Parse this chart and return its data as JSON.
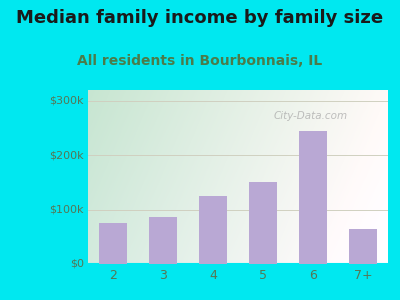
{
  "title": "Median family income by family size",
  "subtitle": "All residents in Bourbonnais, IL",
  "categories": [
    "2",
    "3",
    "4",
    "5",
    "6",
    "7+"
  ],
  "values": [
    75000,
    87000,
    125000,
    150000,
    245000,
    65000
  ],
  "bar_color": "#b9a8d4",
  "title_fontsize": 13,
  "subtitle_fontsize": 10,
  "subtitle_color": "#4a7c4a",
  "title_color": "#1a1a1a",
  "background_outer": "#00e8f0",
  "background_inner_left": "#c8e8d8",
  "background_inner_right": "#e8ede0",
  "background_inner_bottom": "#f0f0e8",
  "ylim": [
    0,
    320000
  ],
  "yticks": [
    0,
    100000,
    200000,
    300000
  ],
  "ytick_labels": [
    "$0",
    "$100k",
    "$200k",
    "$300k"
  ],
  "watermark": "City-Data.com",
  "grid_color": "#d0d0c0",
  "tick_color": "#557755"
}
